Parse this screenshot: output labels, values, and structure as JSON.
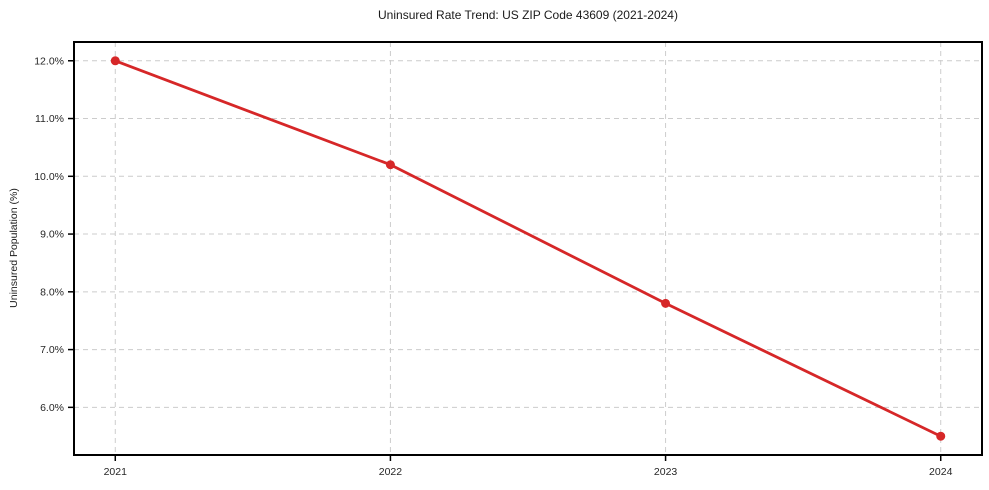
{
  "chart_data": {
    "type": "line",
    "title": "Uninsured Rate Trend: US ZIP Code 43609 (2021-2024)",
    "xlabel": "",
    "ylabel": "Uninsured Population (%)",
    "x": [
      2021,
      2022,
      2023,
      2024
    ],
    "x_tick_labels": [
      "2021",
      "2022",
      "2023",
      "2024"
    ],
    "series": [
      {
        "name": "Uninsured Population (%)",
        "values": [
          12.0,
          10.2,
          7.8,
          5.5
        ],
        "color": "#d62728",
        "marker": "circle"
      }
    ],
    "y_ticks": [
      6,
      7,
      8,
      9,
      10,
      11,
      12
    ],
    "y_tick_labels": [
      "6.0%",
      "7.0%",
      "8.0%",
      "9.0%",
      "10.0%",
      "11.0%",
      "12.0%"
    ],
    "xlim": [
      2020.85,
      2024.15
    ],
    "ylim": [
      5.175,
      12.325
    ],
    "grid": "dashed",
    "legend": "none",
    "colors": {
      "line": "#d62728",
      "grid": "#cccccc",
      "spine": "#000000",
      "tick_label": "#262626",
      "background": "#ffffff"
    }
  }
}
